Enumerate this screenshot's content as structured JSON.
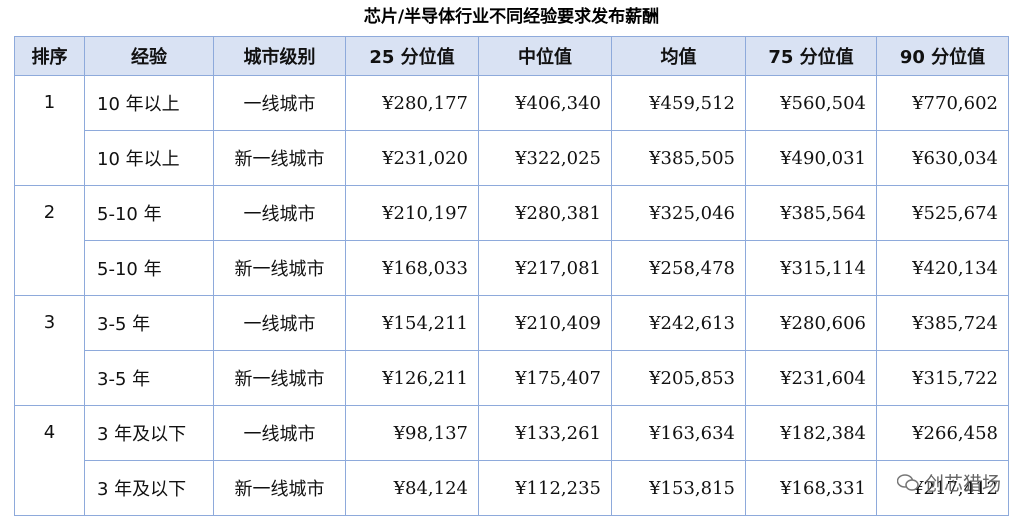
{
  "header": {
    "title": "芯片/半导体行业不同经验要求发布薪酬"
  },
  "table": {
    "columns": [
      "排序",
      "经验",
      "城市级别",
      "25 分位值",
      "中位值",
      "均值",
      "75 分位值",
      "90 分位值"
    ],
    "groups": [
      {
        "rank": "1",
        "rows": [
          [
            "10 年以上",
            "一线城市",
            "¥280,177",
            "¥406,340",
            "¥459,512",
            "¥560,504",
            "¥770,602"
          ],
          [
            "10 年以上",
            "新一线城市",
            "¥231,020",
            "¥322,025",
            "¥385,505",
            "¥490,031",
            "¥630,034"
          ]
        ]
      },
      {
        "rank": "2",
        "rows": [
          [
            "5-10 年",
            "一线城市",
            "¥210,197",
            "¥280,381",
            "¥325,046",
            "¥385,564",
            "¥525,674"
          ],
          [
            "5-10 年",
            "新一线城市",
            "¥168,033",
            "¥217,081",
            "¥258,478",
            "¥315,114",
            "¥420,134"
          ]
        ]
      },
      {
        "rank": "3",
        "rows": [
          [
            "3-5 年",
            "一线城市",
            "¥154,211",
            "¥210,409",
            "¥242,613",
            "¥280,606",
            "¥385,724"
          ],
          [
            "3-5 年",
            "新一线城市",
            "¥126,211",
            "¥175,407",
            "¥205,853",
            "¥231,604",
            "¥315,722"
          ]
        ]
      },
      {
        "rank": "4",
        "rows": [
          [
            "3 年及以下",
            "一线城市",
            "¥98,137",
            "¥133,261",
            "¥163,634",
            "¥182,384",
            "¥266,458"
          ],
          [
            "3 年及以下",
            "新一线城市",
            "¥84,124",
            "¥112,235",
            "¥153,815",
            "¥168,331",
            "¥217,412"
          ]
        ]
      }
    ]
  },
  "watermark": "创芯猎场"
}
